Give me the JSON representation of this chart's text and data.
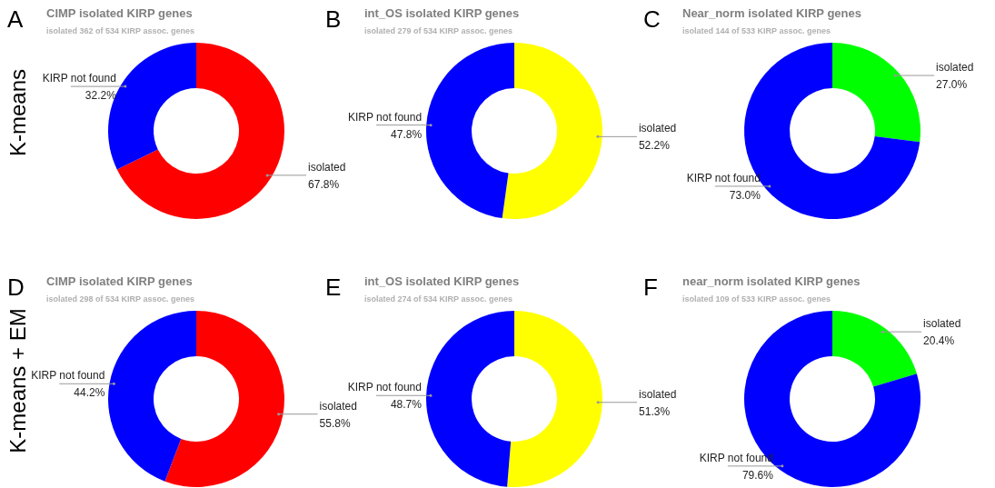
{
  "chart_data": [
    {
      "type": "donut",
      "title": "CIMP isolated KIRP genes",
      "subtitle": "isolated 362 of 534 KIRP assoc. genes",
      "categories": [
        "isolated",
        "KIRP not found"
      ],
      "values": [
        67.8,
        32.2
      ],
      "colors": [
        "#ff0000",
        "#0000ff"
      ],
      "value_labels": [
        "67.8%",
        "32.2%"
      ],
      "annotations": [
        "A",
        "K-means"
      ]
    },
    {
      "type": "donut",
      "title": "int_OS isolated KIRP genes",
      "subtitle": "isolated 279 of 534 KIRP assoc. genes",
      "categories": [
        "isolated",
        "KIRP not found"
      ],
      "values": [
        52.2,
        47.8
      ],
      "colors": [
        "#ffff00",
        "#0000ff"
      ],
      "value_labels": [
        "52.2%",
        "47.8%"
      ],
      "annotations": [
        "B"
      ]
    },
    {
      "type": "donut",
      "title": "Near_norm isolated KIRP genes",
      "subtitle": "isolated 144 of 533 KIRP assoc. genes",
      "categories": [
        "isolated",
        "KIRP not found"
      ],
      "values": [
        27.0,
        73.0
      ],
      "colors": [
        "#00ff00",
        "#0000ff"
      ],
      "value_labels": [
        "27.0%",
        "73.0%"
      ],
      "annotations": [
        "C"
      ]
    },
    {
      "type": "donut",
      "title": "CIMP isolated KIRP genes",
      "subtitle": "isolated 298 of 534 KIRP assoc. genes",
      "categories": [
        "isolated",
        "KIRP not found"
      ],
      "values": [
        55.8,
        44.2
      ],
      "colors": [
        "#ff0000",
        "#0000ff"
      ],
      "value_labels": [
        "55.8%",
        "44.2%"
      ],
      "annotations": [
        "D",
        "K-means + EM"
      ]
    },
    {
      "type": "donut",
      "title": "int_OS isolated KIRP genes",
      "subtitle": "isolated 274 of 534 KIRP assoc. genes",
      "categories": [
        "isolated",
        "KIRP not found"
      ],
      "values": [
        51.3,
        48.7
      ],
      "colors": [
        "#ffff00",
        "#0000ff"
      ],
      "value_labels": [
        "51.3%",
        "48.7%"
      ],
      "annotations": [
        "E"
      ]
    },
    {
      "type": "donut",
      "title": "near_norm isolated KIRP genes",
      "subtitle": "isolated 109 of 533 KIRP assoc. genes",
      "categories": [
        "isolated",
        "KIRP not found"
      ],
      "values": [
        20.4,
        79.6
      ],
      "colors": [
        "#00ff00",
        "#0000ff"
      ],
      "value_labels": [
        "20.4%",
        "79.6%"
      ],
      "annotations": [
        "F"
      ]
    }
  ]
}
